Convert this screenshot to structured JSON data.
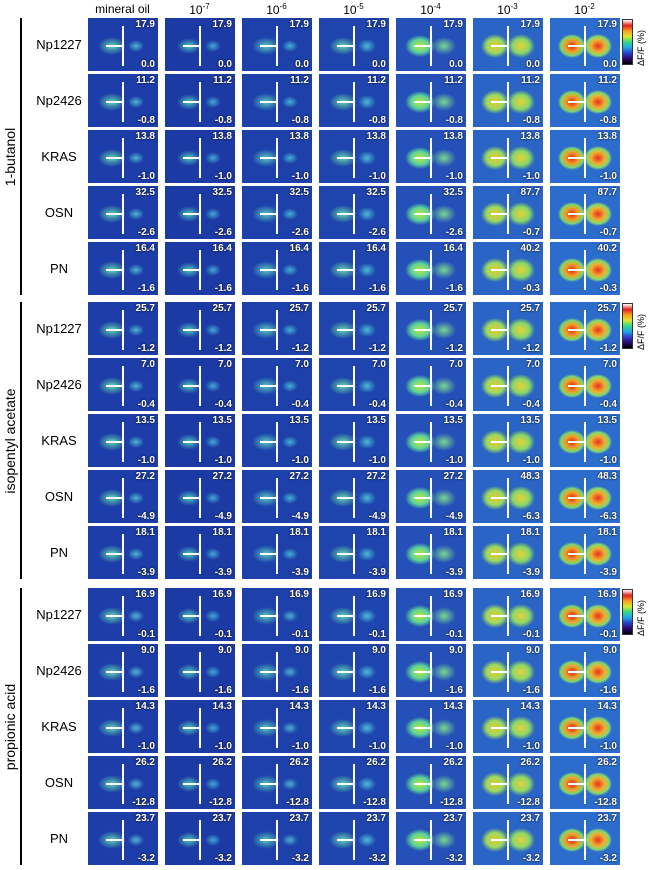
{
  "concentrations": [
    "mineral oil",
    {
      "base": "10",
      "exponent": "-7"
    },
    {
      "base": "10",
      "exponent": "-6"
    },
    {
      "base": "10",
      "exponent": "-5"
    },
    {
      "base": "10",
      "exponent": "-4"
    },
    {
      "base": "10",
      "exponent": "-3"
    },
    {
      "base": "10",
      "exponent": "-2"
    }
  ],
  "colorbar_label": "ΔF/F (%)",
  "groups": [
    {
      "odorant": "1-butanol",
      "rows": [
        {
          "label": "Np1227",
          "max": [
            "17.9",
            "17.9",
            "17.9",
            "17.9",
            "17.9",
            "17.9",
            "17.9"
          ],
          "min": [
            "0.0",
            "0.0",
            "0.0",
            "0.0",
            "0.0",
            "0.0",
            "0.0"
          ]
        },
        {
          "label": "Np2426",
          "max": [
            "11.2",
            "11.2",
            "11.2",
            "11.2",
            "11.2",
            "11.2",
            "11.2"
          ],
          "min": [
            "-0.8",
            "-0.8",
            "-0.8",
            "-0.8",
            "-0.8",
            "-0.8",
            "-0.8"
          ]
        },
        {
          "label": "KRAS",
          "max": [
            "13.8",
            "13.8",
            "13.8",
            "13.8",
            "13.8",
            "13.8",
            "13.8"
          ],
          "min": [
            "-1.0",
            "-1.0",
            "-1.0",
            "-1.0",
            "-1.0",
            "-1.0",
            "-1.0"
          ]
        },
        {
          "label": "OSN",
          "max": [
            "32.5",
            "32.5",
            "32.5",
            "32.5",
            "32.5",
            "87.7",
            "87.7"
          ],
          "min": [
            "-2.6",
            "-2.6",
            "-2.6",
            "-2.6",
            "-2.6",
            "-0.7",
            "-0.7"
          ]
        },
        {
          "label": "PN",
          "max": [
            "16.4",
            "16.4",
            "16.4",
            "16.4",
            "16.4",
            "40.2",
            "40.2"
          ],
          "min": [
            "-1.6",
            "-1.6",
            "-1.6",
            "-1.6",
            "-1.6",
            "-0.3",
            "-0.3"
          ]
        }
      ]
    },
    {
      "odorant": "isopentyl acetate",
      "rows": [
        {
          "label": "Np1227",
          "max": [
            "25.7",
            "25.7",
            "25.7",
            "25.7",
            "25.7",
            "25.7",
            "25.7"
          ],
          "min": [
            "-1.2",
            "-1.2",
            "-1.2",
            "-1.2",
            "-1.2",
            "-1.2",
            "-1.2"
          ]
        },
        {
          "label": "Np2426",
          "max": [
            "7.0",
            "7.0",
            "7.0",
            "7.0",
            "7.0",
            "7.0",
            "7.0"
          ],
          "min": [
            "-0.4",
            "-0.4",
            "-0.4",
            "-0.4",
            "-0.4",
            "-0.4",
            "-0.4"
          ]
        },
        {
          "label": "KRAS",
          "max": [
            "13.5",
            "13.5",
            "13.5",
            "13.5",
            "13.5",
            "13.5",
            "13.5"
          ],
          "min": [
            "-1.0",
            "-1.0",
            "-1.0",
            "-1.0",
            "-1.0",
            "-1.0",
            "-1.0"
          ]
        },
        {
          "label": "OSN",
          "max": [
            "27.2",
            "27.2",
            "27.2",
            "27.2",
            "27.2",
            "48.3",
            "48.3"
          ],
          "min": [
            "-4.9",
            "-4.9",
            "-4.9",
            "-4.9",
            "-4.9",
            "-6.3",
            "-6.3"
          ]
        },
        {
          "label": "PN",
          "max": [
            "18.1",
            "18.1",
            "18.1",
            "18.1",
            "18.1",
            "18.1",
            "18.1"
          ],
          "min": [
            "-3.9",
            "-3.9",
            "-3.9",
            "-3.9",
            "-3.9",
            "-3.9",
            "-3.9"
          ]
        }
      ]
    },
    {
      "odorant": "propionic acid",
      "rows": [
        {
          "label": "Np1227",
          "max": [
            "16.9",
            "16.9",
            "16.9",
            "16.9",
            "16.9",
            "16.9",
            "16.9"
          ],
          "min": [
            "-0.1",
            "-0.1",
            "-0.1",
            "-0.1",
            "-0.1",
            "-0.1",
            "-0.1"
          ]
        },
        {
          "label": "Np2426",
          "max": [
            "9.0",
            "9.0",
            "9.0",
            "9.0",
            "9.0",
            "9.0",
            "9.0"
          ],
          "min": [
            "-1.6",
            "-1.6",
            "-1.6",
            "-1.6",
            "-1.6",
            "-1.6",
            "-1.6"
          ]
        },
        {
          "label": "KRAS",
          "max": [
            "14.3",
            "14.3",
            "14.3",
            "14.3",
            "14.3",
            "14.3",
            "14.3"
          ],
          "min": [
            "-1.0",
            "-1.0",
            "-1.0",
            "-1.0",
            "-1.0",
            "-1.0",
            "-1.0"
          ]
        },
        {
          "label": "OSN",
          "max": [
            "26.2",
            "26.2",
            "26.2",
            "26.2",
            "26.2",
            "26.2",
            "26.2"
          ],
          "min": [
            "-12.8",
            "-12.8",
            "-12.8",
            "-12.8",
            "-12.8",
            "-12.8",
            "-12.8"
          ]
        },
        {
          "label": "PN",
          "max": [
            "23.7",
            "23.7",
            "23.7",
            "23.7",
            "23.7",
            "23.7",
            "23.7"
          ],
          "min": [
            "-3.2",
            "-3.2",
            "-3.2",
            "-3.2",
            "-3.2",
            "-3.2",
            "-3.2"
          ]
        }
      ]
    }
  ]
}
